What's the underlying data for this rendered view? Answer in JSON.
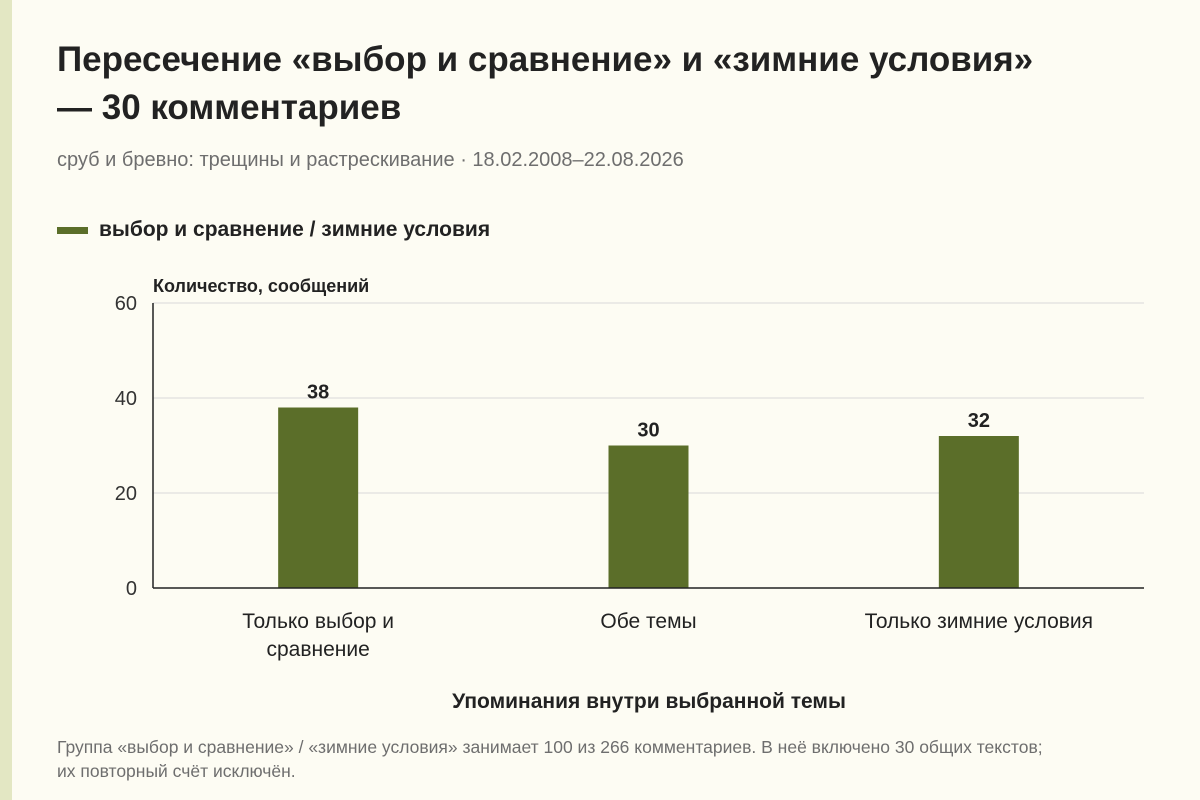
{
  "header": {
    "title": "Пересечение «выбор и сравнение» и «зимние условия» — 30 комментариев",
    "subtitle": "сруб и бревно: трещины и растрескивание · 18.02.2008–22.08.2026"
  },
  "legend": {
    "label": "выбор и сравнение / зимние условия"
  },
  "footnote": "Группа «выбор и сравнение» / «зимние условия» занимает 100 из 266 комментариев. В неё включено 30 общих текстов; их повторный счёт исключён.",
  "colors": {
    "bar": "#5b6e29",
    "accent_rule": "#e3e7c3",
    "grid": "#d9d9d9",
    "axis": "#222222"
  },
  "chart_data": {
    "type": "bar",
    "categories": [
      [
        "Только выбор и",
        "сравнение"
      ],
      [
        "Обе темы"
      ],
      [
        "Только зимние условия"
      ]
    ],
    "series": [
      {
        "name": "выбор и сравнение / зимние условия",
        "values": [
          38,
          30,
          32
        ]
      }
    ],
    "ylabel": "Количество, сообщений",
    "xlabel": "Упоминания внутри выбранной темы",
    "ylim": [
      0,
      60
    ],
    "yticks": [
      0,
      20,
      40,
      60
    ],
    "grid": true,
    "legend_position": "top-left"
  }
}
